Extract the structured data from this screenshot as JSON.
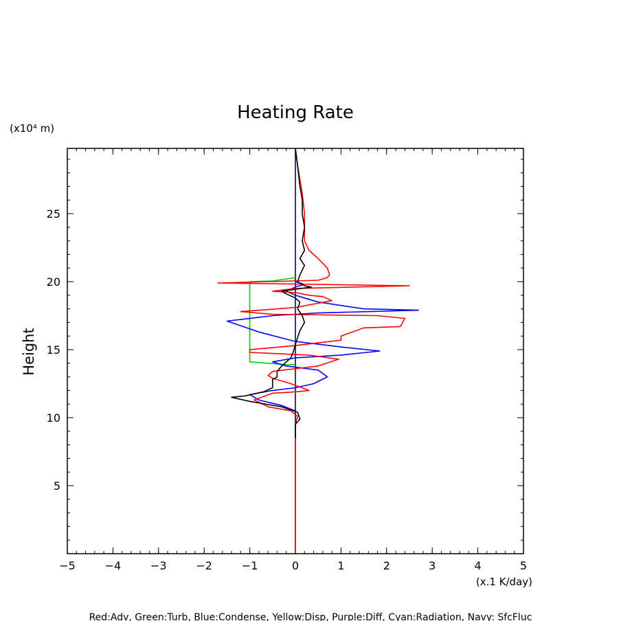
{
  "chart_data": {
    "type": "line",
    "title": "Heating Rate",
    "y_unit": "(x10⁴ m)",
    "x_unit": "(x.1 K/day)",
    "ylabel": "Height",
    "xlabel": "",
    "xlim": [
      -5,
      5
    ],
    "ylim": [
      0,
      29.8
    ],
    "xticks": [
      -5,
      -4,
      -3,
      -2,
      -1,
      0,
      1,
      2,
      3,
      4,
      5
    ],
    "yticks": [
      5,
      10,
      15,
      20,
      25
    ],
    "grid": false,
    "legend_text": "Red:Adv, Green:Turb, Blue:Condense, Yellow:Disp, Purple:Diff, Cyan:Radiation, Navy: SfcFluc",
    "series": [
      {
        "name": "Navy: SfcFluc",
        "color": "#000080",
        "points": [
          [
            0,
            0
          ],
          [
            0,
            29.8
          ]
        ]
      },
      {
        "name": "Green:Turb",
        "color": "#00cc00",
        "points": [
          [
            0,
            20.3
          ],
          [
            -0.5,
            20.05
          ],
          [
            -1.0,
            20.0
          ],
          [
            -1.0,
            14.1
          ],
          [
            -0.6,
            14.0
          ],
          [
            -0.2,
            13.9
          ],
          [
            0,
            13.9
          ]
        ]
      },
      {
        "name": "Blue:Condense",
        "color": "#0000ff",
        "points": [
          [
            0,
            8.5
          ],
          [
            0,
            10.5
          ],
          [
            -0.3,
            10.9
          ],
          [
            -0.8,
            11.3
          ],
          [
            -1.0,
            11.7
          ],
          [
            -0.5,
            12.0
          ],
          [
            0,
            12.2
          ],
          [
            0.4,
            12.5
          ],
          [
            0.7,
            13.0
          ],
          [
            0.5,
            13.5
          ],
          [
            -0.2,
            13.8
          ],
          [
            -0.5,
            14.1
          ],
          [
            0,
            14.4
          ],
          [
            1.0,
            14.6
          ],
          [
            1.85,
            14.9
          ],
          [
            1.0,
            15.2
          ],
          [
            0,
            15.6
          ],
          [
            -0.8,
            16.3
          ],
          [
            -1.5,
            17.1
          ],
          [
            -0.5,
            17.5
          ],
          [
            0.5,
            17.7
          ],
          [
            2.7,
            17.9
          ],
          [
            1.5,
            18.0
          ],
          [
            0.5,
            18.5
          ],
          [
            0,
            19.0
          ],
          [
            -0.2,
            19.3
          ],
          [
            0,
            19.6
          ],
          [
            0.2,
            19.8
          ],
          [
            0,
            20.0
          ]
        ]
      },
      {
        "name": "Red:Adv",
        "color": "#ff0000",
        "points": [
          [
            0,
            0
          ],
          [
            0,
            9.5
          ],
          [
            0.05,
            10.1
          ],
          [
            -0.1,
            10.5
          ],
          [
            -0.6,
            10.8
          ],
          [
            -0.9,
            11.3
          ],
          [
            -0.5,
            11.8
          ],
          [
            0,
            11.9
          ],
          [
            0.3,
            12.0
          ],
          [
            -0.1,
            12.5
          ],
          [
            -0.5,
            12.9
          ],
          [
            -0.6,
            13.1
          ],
          [
            -0.5,
            13.4
          ],
          [
            0,
            13.6
          ],
          [
            0.5,
            13.8
          ],
          [
            0.95,
            14.3
          ],
          [
            0.3,
            14.6
          ],
          [
            -1.0,
            14.8
          ],
          [
            -1.0,
            15.0
          ],
          [
            0,
            15.3
          ],
          [
            1.0,
            15.7
          ],
          [
            1.0,
            16.0
          ],
          [
            1.5,
            16.6
          ],
          [
            2.3,
            16.7
          ],
          [
            2.4,
            17.3
          ],
          [
            1.8,
            17.5
          ],
          [
            -0.5,
            17.6
          ],
          [
            -1.2,
            17.8
          ],
          [
            0,
            18.1
          ],
          [
            0.8,
            18.6
          ],
          [
            0.6,
            18.9
          ],
          [
            0.3,
            19.0
          ],
          [
            0,
            19.2
          ],
          [
            -0.5,
            19.3
          ],
          [
            0,
            19.5
          ],
          [
            2.5,
            19.7
          ],
          [
            -0.5,
            19.85
          ],
          [
            -1.7,
            19.9
          ],
          [
            0.5,
            20.1
          ],
          [
            0.7,
            20.3
          ],
          [
            0.75,
            20.5
          ],
          [
            0.7,
            21.0
          ],
          [
            0.5,
            21.7
          ],
          [
            0.3,
            22.3
          ],
          [
            0.2,
            23.0
          ],
          [
            0.2,
            25.0
          ],
          [
            0.15,
            26.5
          ],
          [
            0.05,
            28.5
          ],
          [
            0,
            29.8
          ]
        ]
      },
      {
        "name": "",
        "color": "#000000",
        "points": [
          [
            0,
            8.5
          ],
          [
            0,
            9.5
          ],
          [
            0.1,
            9.9
          ],
          [
            0.05,
            10.4
          ],
          [
            -0.3,
            10.8
          ],
          [
            -1.0,
            11.2
          ],
          [
            -1.4,
            11.5
          ],
          [
            -1.1,
            11.6
          ],
          [
            -0.7,
            11.9
          ],
          [
            -0.5,
            12.2
          ],
          [
            -0.5,
            12.8
          ],
          [
            -0.4,
            13.0
          ],
          [
            -0.4,
            13.4
          ],
          [
            -0.3,
            13.8
          ],
          [
            -0.1,
            14.4
          ],
          [
            -0.05,
            14.8
          ],
          [
            0,
            15.4
          ],
          [
            0.05,
            15.9
          ],
          [
            0.1,
            16.4
          ],
          [
            0.2,
            17.0
          ],
          [
            0.15,
            17.5
          ],
          [
            0.05,
            18.0
          ],
          [
            0.1,
            18.5
          ],
          [
            0,
            18.8
          ],
          [
            -0.2,
            19.1
          ],
          [
            -0.3,
            19.3
          ],
          [
            -0.1,
            19.4
          ],
          [
            0.35,
            19.6
          ],
          [
            0.2,
            19.7
          ],
          [
            0.05,
            20.0
          ],
          [
            0.1,
            20.5
          ],
          [
            0.2,
            21.2
          ],
          [
            0.1,
            21.7
          ],
          [
            0.2,
            22.3
          ],
          [
            0.15,
            23.0
          ],
          [
            0.2,
            24.0
          ],
          [
            0.15,
            25.0
          ],
          [
            0.15,
            26.0
          ],
          [
            0.1,
            27.0
          ],
          [
            0.05,
            28.5
          ],
          [
            0,
            29.8
          ]
        ]
      }
    ]
  }
}
